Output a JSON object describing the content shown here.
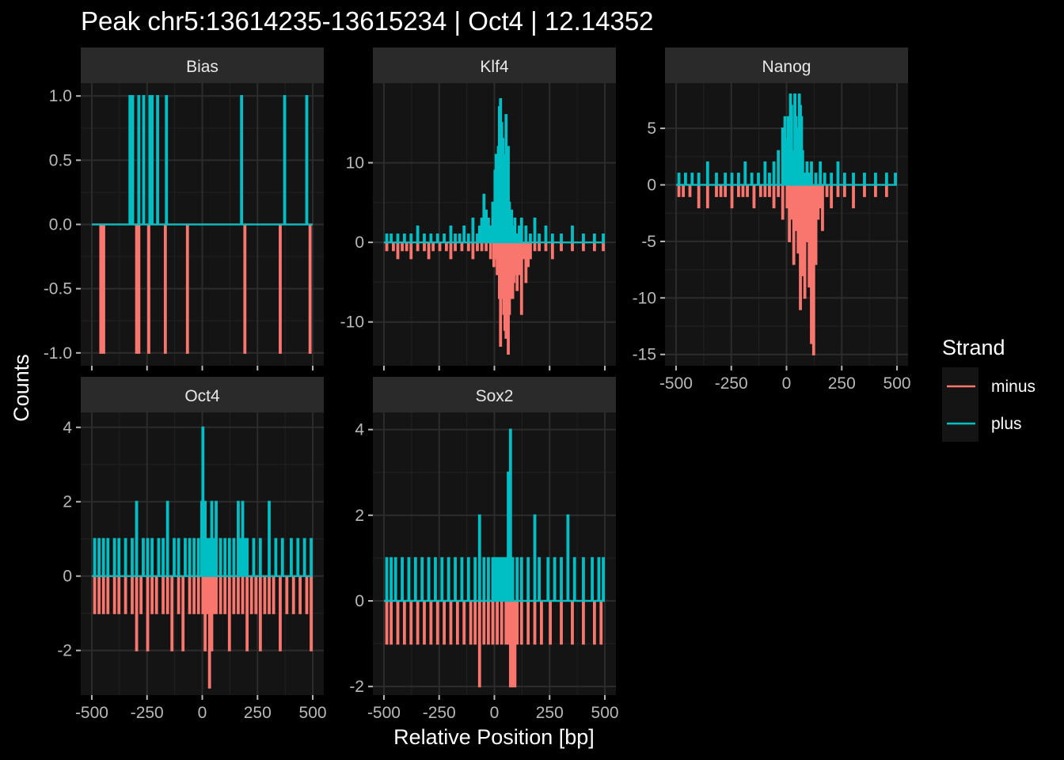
{
  "chart_data": {
    "type": "line",
    "title": "Peak chr5:13614235-13615234 | Oct4 | 12.14352",
    "xlabel": "Relative Position [bp]",
    "ylabel": "Counts",
    "x_ticks": [
      -500,
      -250,
      0,
      250,
      500
    ],
    "xlim": [
      -500,
      500
    ],
    "legend": {
      "title": "Strand",
      "position": "right",
      "entries": [
        {
          "label": "minus",
          "color": "#F8766D"
        },
        {
          "label": "plus",
          "color": "#00BFC4"
        }
      ]
    },
    "panels": [
      {
        "name": "Bias",
        "ylim": [
          -1.1,
          1.1
        ],
        "y_ticks": [
          -1.0,
          -0.5,
          0.0,
          0.5,
          1.0
        ],
        "y_tick_labels": [
          "-1.0",
          "-0.5",
          "0.0",
          "0.5",
          "1.0"
        ],
        "show_x_ticks": false,
        "series": [
          {
            "name": "minus",
            "x": [
              -462,
              -449,
              -300,
              -290,
              -245,
              -170,
              -70,
              190,
              350,
              485
            ],
            "y": [
              -1,
              -1,
              -1,
              -1,
              -1,
              -1,
              -1,
              -1,
              -1,
              -1
            ]
          },
          {
            "name": "plus",
            "x": [
              -330,
              -318,
              -290,
              -268,
              -240,
              -230,
              -205,
              -165,
              175,
              370,
              470
            ],
            "y": [
              1,
              1,
              1,
              1,
              1,
              1,
              1,
              1,
              1,
              1,
              1
            ]
          }
        ]
      },
      {
        "name": "Klf4",
        "ylim": [
          -15.5,
          20
        ],
        "y_ticks": [
          -10,
          0,
          10
        ],
        "y_tick_labels": [
          "-10",
          "0",
          "10"
        ],
        "show_x_ticks": false,
        "series": [
          {
            "name": "minus",
            "x": [
              -490,
              -460,
              -440,
              -420,
              -400,
              -380,
              -350,
              -320,
              -300,
              -280,
              -250,
              -220,
              -200,
              -180,
              -150,
              -120,
              -100,
              -80,
              -60,
              -40,
              -20,
              -5,
              0,
              10,
              20,
              25,
              30,
              35,
              40,
              45,
              50,
              55,
              60,
              65,
              70,
              75,
              80,
              85,
              90,
              95,
              100,
              105,
              110,
              115,
              120,
              130,
              140,
              150,
              160,
              180,
              200,
              230,
              260,
              300,
              350,
              400,
              450,
              490
            ],
            "y": [
              -1,
              -1,
              -2,
              -1,
              -1,
              -2,
              -1,
              -1,
              -2,
              -1,
              -1,
              -1,
              -2,
              -1,
              -1,
              -1,
              -2,
              -1,
              -1,
              -1,
              -2,
              -3,
              -2,
              -4,
              -7,
              -13,
              -5,
              -7,
              -9,
              -11,
              -12,
              -8,
              -14,
              -9,
              -7,
              -6,
              -7,
              -5,
              -4,
              -3,
              -6,
              -2,
              -4,
              -1,
              -9,
              -2,
              -5,
              -3,
              -2,
              -1,
              -1,
              -1,
              -2,
              -1,
              -1,
              -1,
              -1,
              -1
            ]
          },
          {
            "name": "plus",
            "x": [
              -490,
              -470,
              -440,
              -410,
              -380,
              -350,
              -320,
              -290,
              -260,
              -230,
              -200,
              -180,
              -160,
              -140,
              -120,
              -100,
              -80,
              -70,
              -60,
              -50,
              -40,
              -30,
              -20,
              -10,
              0,
              5,
              10,
              15,
              20,
              25,
              30,
              35,
              40,
              45,
              50,
              55,
              60,
              65,
              70,
              75,
              80,
              90,
              100,
              110,
              120,
              140,
              160,
              180,
              200,
              230,
              260,
              300,
              350,
              400,
              450,
              490
            ],
            "y": [
              1,
              1,
              1,
              1,
              1,
              2,
              1,
              1,
              1,
              1,
              2,
              1,
              1,
              2,
              1,
              3,
              1,
              2,
              3,
              6,
              4,
              3,
              2,
              5,
              9,
              11,
              8,
              12,
              17,
              18,
              15,
              13,
              11,
              9,
              16,
              7,
              12,
              5,
              3,
              4,
              2,
              3,
              1,
              2,
              3,
              2,
              1,
              3,
              1,
              2,
              1,
              1,
              2,
              1,
              1,
              1
            ]
          }
        ]
      },
      {
        "name": "Nanog",
        "ylim": [
          -16,
          9
        ],
        "y_ticks": [
          -15,
          -10,
          -5,
          0,
          5
        ],
        "y_tick_labels": [
          "-15",
          "-10",
          "-5",
          "0",
          "5"
        ],
        "show_x_ticks": true,
        "series": [
          {
            "name": "minus",
            "x": [
              -490,
              -470,
              -440,
              -400,
              -360,
              -320,
              -300,
              -280,
              -250,
              -220,
              -200,
              -180,
              -150,
              -120,
              -100,
              -80,
              -60,
              -40,
              -20,
              0,
              10,
              20,
              30,
              40,
              50,
              60,
              70,
              80,
              90,
              100,
              110,
              120,
              130,
              140,
              150,
              160,
              180,
              200,
              230,
              260,
              300,
              350,
              400,
              450
            ],
            "y": [
              -1,
              -1,
              -1,
              -2,
              -2,
              -1,
              -1,
              -1,
              -2,
              -1,
              -1,
              -1,
              -2,
              -1,
              -1,
              -1,
              -2,
              -1,
              -3,
              -2,
              -5,
              -3,
              -7,
              -4,
              -6,
              -11,
              -8,
              -10,
              -5,
              -9,
              -14,
              -15,
              -7,
              -3,
              -2,
              -4,
              -1,
              -2,
              -1,
              -1,
              -2,
              -1,
              -1,
              -1
            ]
          },
          {
            "name": "plus",
            "x": [
              -490,
              -460,
              -430,
              -400,
              -360,
              -320,
              -280,
              -250,
              -220,
              -190,
              -160,
              -130,
              -100,
              -80,
              -60,
              -40,
              -20,
              -10,
              0,
              5,
              10,
              15,
              20,
              25,
              30,
              35,
              40,
              45,
              50,
              55,
              60,
              65,
              70,
              80,
              90,
              100,
              110,
              130,
              150,
              170,
              200,
              230,
              260,
              300,
              350,
              400,
              450,
              490
            ],
            "y": [
              1,
              1,
              1,
              1,
              2,
              1,
              1,
              1,
              1,
              2,
              1,
              1,
              2,
              1,
              2,
              3,
              5,
              6,
              4,
              6,
              5,
              8,
              7,
              2,
              3,
              8,
              6,
              5,
              4,
              8,
              7,
              6,
              3,
              1,
              2,
              1,
              2,
              1,
              2,
              1,
              1,
              2,
              1,
              1,
              1,
              1,
              1,
              1
            ]
          }
        ]
      },
      {
        "name": "Oct4",
        "ylim": [
          -3.2,
          4.4
        ],
        "y_ticks": [
          -2,
          0,
          2,
          4
        ],
        "y_tick_labels": [
          "-2",
          "0",
          "2",
          "4"
        ],
        "show_x_ticks": true,
        "series": [
          {
            "name": "minus",
            "x": [
              -490,
              -470,
              -450,
              -430,
              -400,
              -380,
              -350,
              -320,
              -300,
              -280,
              -250,
              -230,
              -210,
              -180,
              -160,
              -140,
              -110,
              -90,
              -60,
              -40,
              -20,
              0,
              10,
              20,
              30,
              40,
              50,
              60,
              80,
              100,
              120,
              140,
              160,
              180,
              200,
              220,
              240,
              260,
              280,
              300,
              320,
              350,
              380,
              410,
              440,
              470,
              490
            ],
            "y": [
              -1,
              -1,
              -1,
              -1,
              -1,
              -1,
              -1,
              -1,
              -2,
              -1,
              -2,
              -1,
              -1,
              -1,
              -1,
              -2,
              -1,
              -2,
              -1,
              -1,
              -1,
              -1,
              -2,
              -1,
              -3,
              -2,
              -1,
              -1,
              -1,
              -1,
              -2,
              -1,
              -1,
              -1,
              -2,
              -1,
              -1,
              -2,
              -1,
              -1,
              -1,
              -2,
              -1,
              -1,
              -1,
              -1,
              -2
            ]
          },
          {
            "name": "plus",
            "x": [
              -490,
              -470,
              -450,
              -430,
              -400,
              -380,
              -350,
              -320,
              -300,
              -270,
              -250,
              -230,
              -200,
              -180,
              -160,
              -130,
              -110,
              -80,
              -60,
              -40,
              -20,
              -5,
              0,
              10,
              20,
              30,
              40,
              50,
              60,
              80,
              100,
              120,
              140,
              160,
              170,
              180,
              190,
              200,
              230,
              260,
              300,
              330,
              360,
              400,
              430,
              460,
              490
            ],
            "y": [
              1,
              1,
              1,
              1,
              1,
              1,
              1,
              1,
              2,
              1,
              1,
              1,
              1,
              1,
              2,
              1,
              1,
              1,
              1,
              1,
              1,
              2,
              4,
              2,
              1,
              1,
              2,
              1,
              2,
              1,
              1,
              1,
              1,
              2,
              1,
              2,
              1,
              1,
              1,
              1,
              2,
              1,
              1,
              1,
              1,
              1,
              1
            ]
          }
        ]
      },
      {
        "name": "Sox2",
        "ylim": [
          -2.2,
          4.4
        ],
        "y_ticks": [
          -2,
          0,
          2,
          4
        ],
        "y_tick_labels": [
          "-2",
          "0",
          "2",
          "4"
        ],
        "show_x_ticks": true,
        "series": [
          {
            "name": "minus",
            "x": [
              -490,
              -470,
              -440,
              -410,
              -380,
              -350,
              -320,
              -290,
              -260,
              -230,
              -200,
              -170,
              -140,
              -110,
              -90,
              -70,
              -50,
              -30,
              -10,
              10,
              30,
              50,
              60,
              70,
              80,
              90,
              100,
              120,
              150,
              180,
              210,
              250,
              300,
              350,
              400,
              450,
              480
            ],
            "y": [
              -1,
              -1,
              -1,
              -1,
              -1,
              -1,
              -1,
              -1,
              -1,
              -1,
              -1,
              -1,
              -1,
              -1,
              -1,
              -2,
              -1,
              -1,
              -1,
              -1,
              -1,
              -1,
              -1,
              -2,
              -2,
              -2,
              -1,
              -1,
              -1,
              -1,
              -1,
              -1,
              -1,
              -1,
              -1,
              -1,
              -1
            ]
          },
          {
            "name": "plus",
            "x": [
              -490,
              -470,
              -450,
              -420,
              -390,
              -360,
              -330,
              -300,
              -270,
              -240,
              -210,
              -180,
              -150,
              -120,
              -90,
              -70,
              -50,
              -30,
              -10,
              0,
              10,
              20,
              30,
              40,
              50,
              60,
              70,
              80,
              100,
              120,
              150,
              180,
              200,
              240,
              270,
              300,
              330,
              360,
              400,
              440,
              470,
              490
            ],
            "y": [
              1,
              1,
              1,
              1,
              1,
              1,
              1,
              1,
              1,
              1,
              1,
              1,
              1,
              1,
              1,
              2,
              1,
              1,
              1,
              1,
              1,
              1,
              1,
              1,
              1,
              3,
              4,
              1,
              1,
              1,
              1,
              2,
              1,
              1,
              1,
              1,
              2,
              1,
              1,
              1,
              1,
              1
            ]
          }
        ]
      }
    ]
  }
}
